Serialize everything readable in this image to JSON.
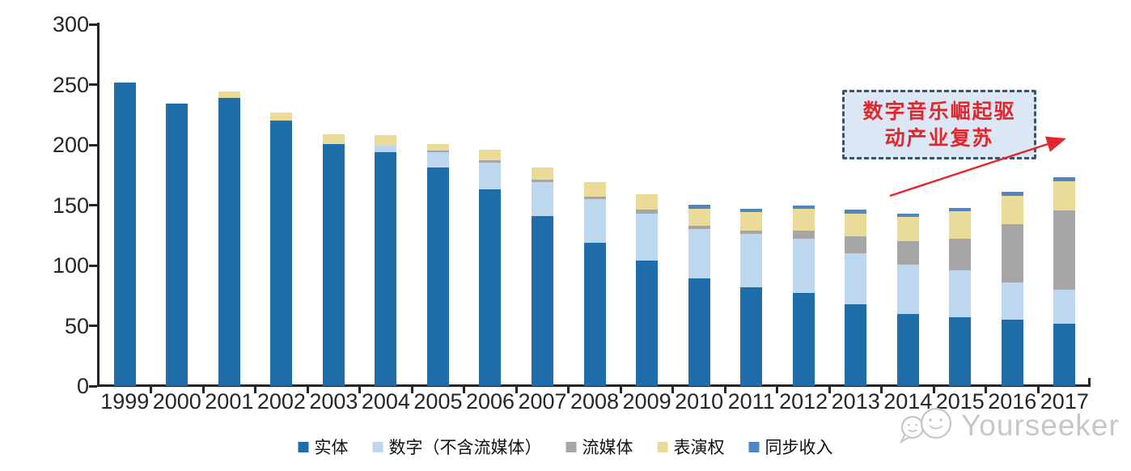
{
  "watermark": {
    "text": "Yourseeker"
  },
  "annotation": {
    "line1": "数字音乐崛起驱",
    "line2": "动产业复苏",
    "text_color": "#e2262b",
    "box_fill": "#dce7f6",
    "border_color": "#3a536f",
    "arrow_color": "#e2262b"
  },
  "chart_data": {
    "type": "bar",
    "stacked": true,
    "grid": false,
    "legend_position": "bottom",
    "ylim": [
      0,
      300
    ],
    "yticks": [
      0,
      50,
      100,
      150,
      200,
      250,
      300
    ],
    "xlabel": "",
    "ylabel": "",
    "categories": [
      "1999",
      "2000",
      "2001",
      "2002",
      "2003",
      "2004",
      "2005",
      "2006",
      "2007",
      "2008",
      "2009",
      "2010",
      "2011",
      "2012",
      "2013",
      "2014",
      "2015",
      "2016",
      "2017"
    ],
    "series": [
      {
        "name": "实体",
        "color": "#1f6da9",
        "values": [
          252,
          234,
          239,
          220,
          201,
          194,
          181,
          163,
          141,
          119,
          104,
          89,
          82,
          77,
          68,
          60,
          57,
          55,
          52
        ]
      },
      {
        "name": "数字（不含流媒体）",
        "color": "#bdd7ee",
        "values": [
          0,
          0,
          0,
          0,
          0,
          5,
          13,
          22,
          28,
          36,
          39,
          41,
          44,
          45,
          42,
          41,
          39,
          31,
          28
        ]
      },
      {
        "name": "流媒体",
        "color": "#a6a6a6",
        "values": [
          0,
          0,
          0,
          0,
          0,
          0,
          1,
          2,
          2,
          2,
          3,
          3,
          3,
          7,
          14,
          19,
          26,
          48,
          66
        ]
      },
      {
        "name": "表演权",
        "color": "#ebdb99",
        "values": [
          0,
          0,
          5,
          7,
          8,
          9,
          6,
          9,
          10,
          12,
          13,
          14,
          15,
          18,
          19,
          20,
          23,
          24,
          24
        ]
      },
      {
        "name": "同步收入",
        "color": "#4d86c2",
        "values": [
          0,
          0,
          0,
          0,
          0,
          0,
          0,
          0,
          0,
          0,
          0,
          3,
          3,
          3,
          3,
          3,
          3,
          3,
          3
        ]
      }
    ]
  }
}
